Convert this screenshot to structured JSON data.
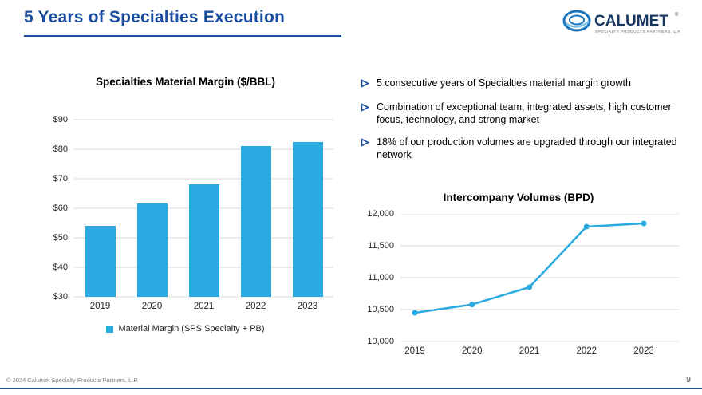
{
  "slide": {
    "title": "5 Years of Specialties Execution",
    "footer_copyright": "© 2024 Calumet Specialty Products Partners, L.P.",
    "page_number": "9"
  },
  "logo": {
    "brand": "CALUMET",
    "registered_mark": "®",
    "subtitle": "SPECIALTY PRODUCTS PARTNERS, L.P."
  },
  "bullets": [
    "5 consecutive years of Specialties material margin growth",
    "Combination of exceptional team, integrated assets, high customer focus, technology, and strong market",
    "18% of our production volumes are upgraded through our integrated network"
  ],
  "colors": {
    "title_blue": "#1C4EA0",
    "chart_blue": "#29ABE2",
    "grid_gray": "#D9D9D9",
    "footer_gray": "#7F7F7F"
  },
  "chart_data": [
    {
      "type": "bar",
      "title": "Specialties Material Margin ($/BBL)",
      "categories": [
        "2019",
        "2020",
        "2021",
        "2022",
        "2023"
      ],
      "values": [
        54,
        61.5,
        68,
        81,
        82.5
      ],
      "xlabel": "",
      "ylabel": "",
      "ylim": [
        30,
        90
      ],
      "ytick_step": 10,
      "ytick_labels": [
        "$30",
        "$40",
        "$50",
        "$60",
        "$70",
        "$80",
        "$90"
      ],
      "legend": "Material Margin (SPS Specialty + PB)",
      "bar_color": "#29ABE2",
      "grid": true
    },
    {
      "type": "line",
      "title": "Intercompany Volumes (BPD)",
      "categories": [
        "2019",
        "2020",
        "2021",
        "2022",
        "2023"
      ],
      "values": [
        10450,
        10580,
        10850,
        11800,
        11850
      ],
      "xlabel": "",
      "ylabel": "",
      "ylim": [
        10000,
        12000
      ],
      "ytick_step": 500,
      "ytick_labels": [
        "10,000",
        "10,500",
        "11,000",
        "11,500",
        "12,000"
      ],
      "line_color": "#29ABE2",
      "markers": true,
      "grid": true
    }
  ]
}
